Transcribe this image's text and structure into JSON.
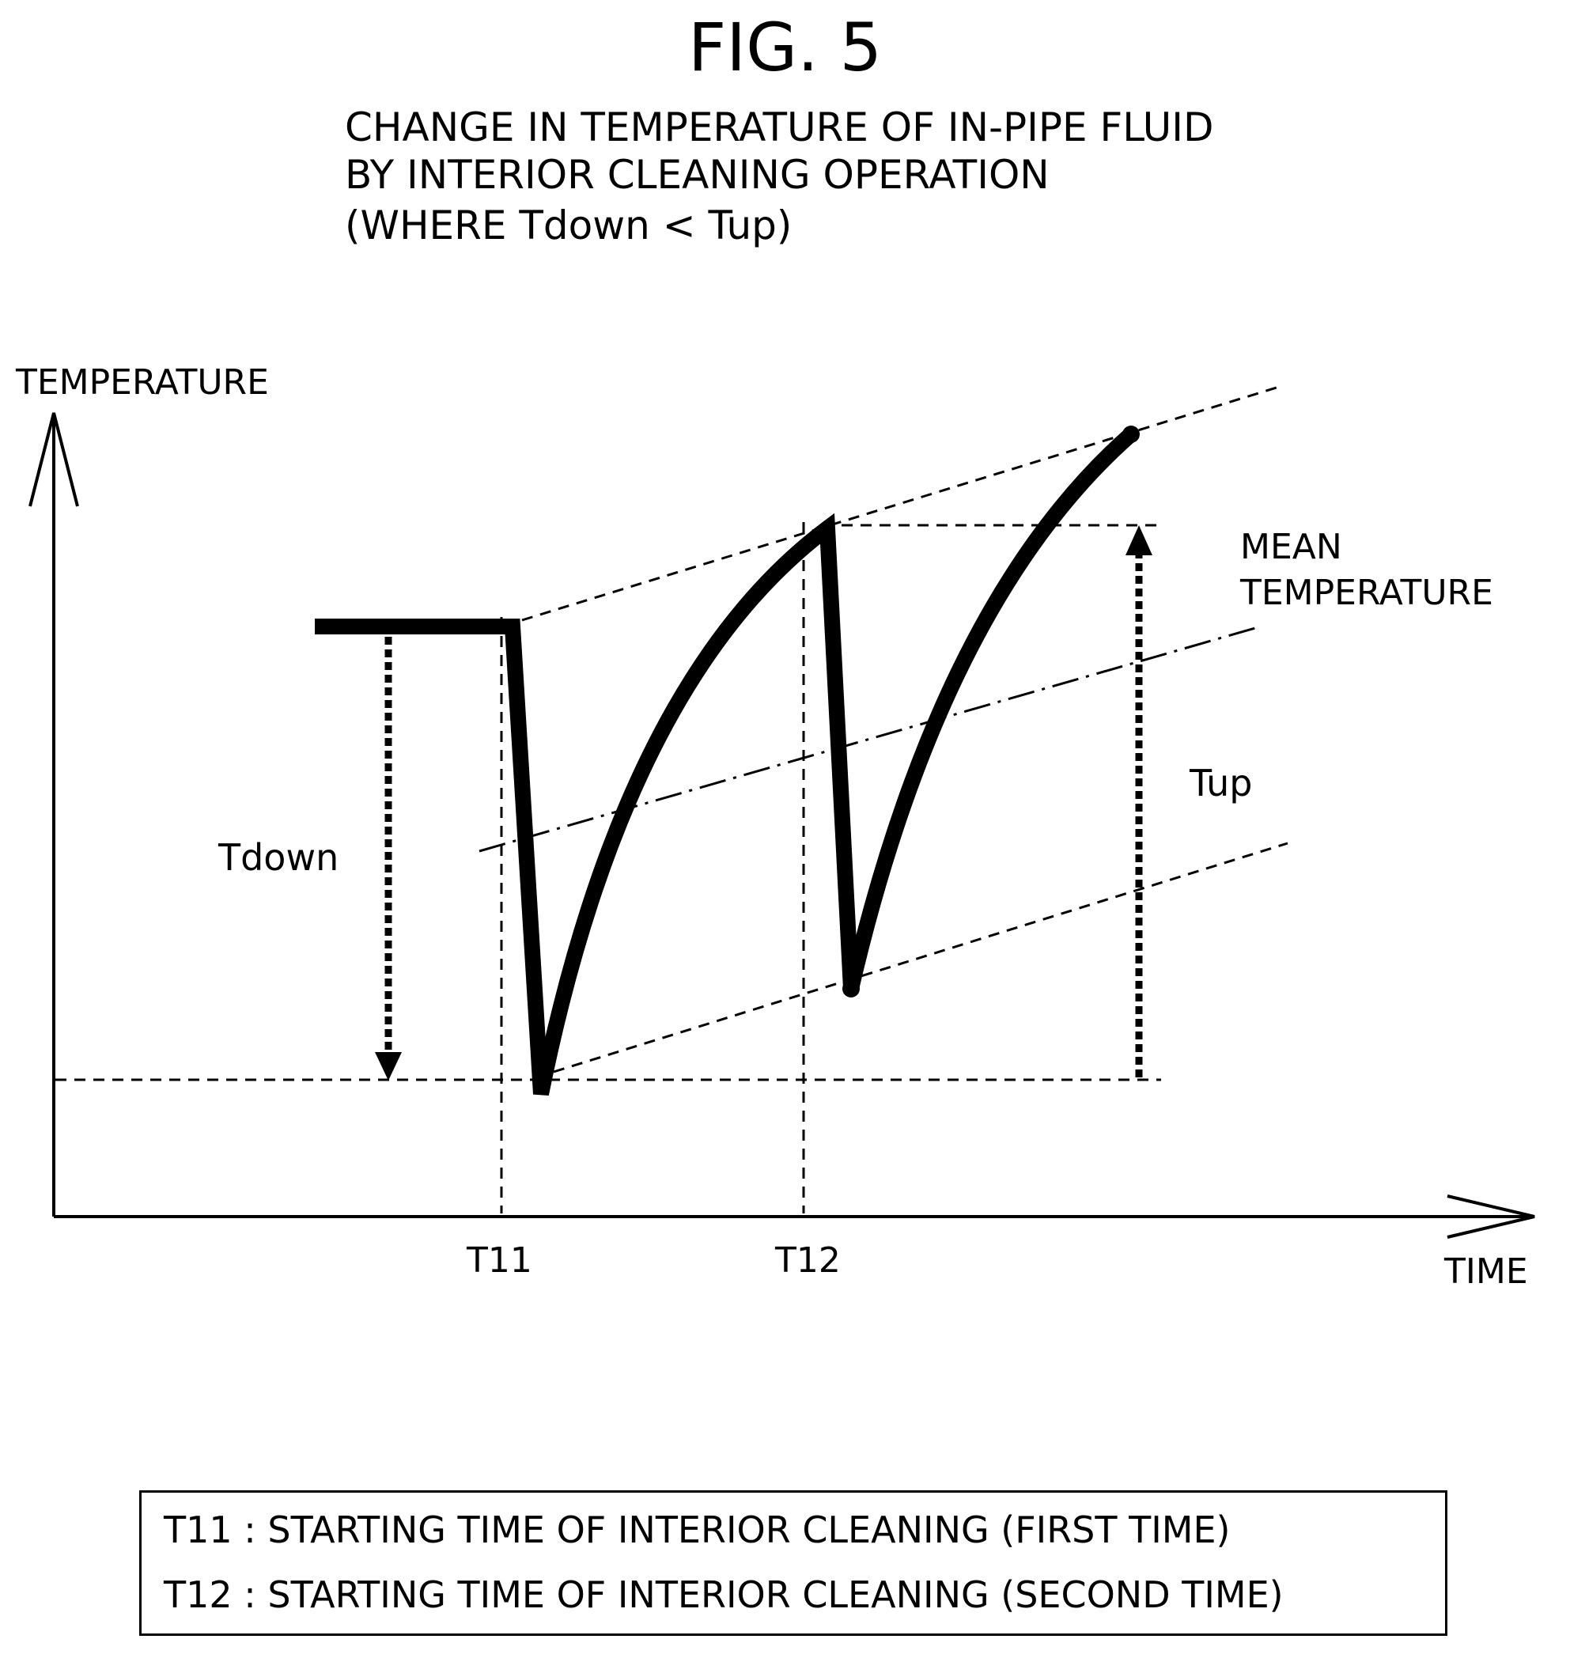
{
  "figure": {
    "title": "FIG. 5",
    "subtitle_lines": [
      "CHANGE IN TEMPERATURE OF IN-PIPE FLUID",
      "BY INTERIOR CLEANING OPERATION",
      "(WHERE Tdown < Tup)"
    ]
  },
  "axes": {
    "y_label": "TEMPERATURE",
    "x_label": "TIME",
    "x_ticks": [
      "T11",
      "T12"
    ]
  },
  "annotations": {
    "mean_temperature": [
      "MEAN",
      "TEMPERATURE"
    ],
    "t_down": "Tdown",
    "t_up": "Tup"
  },
  "legend": {
    "lines": [
      "T11 : STARTING TIME OF INTERIOR CLEANING (FIRST TIME)",
      "T12 : STARTING TIME OF INTERIOR CLEANING (SECOND TIME)"
    ]
  },
  "colors": {
    "ink": "#000000",
    "background": "#ffffff"
  }
}
